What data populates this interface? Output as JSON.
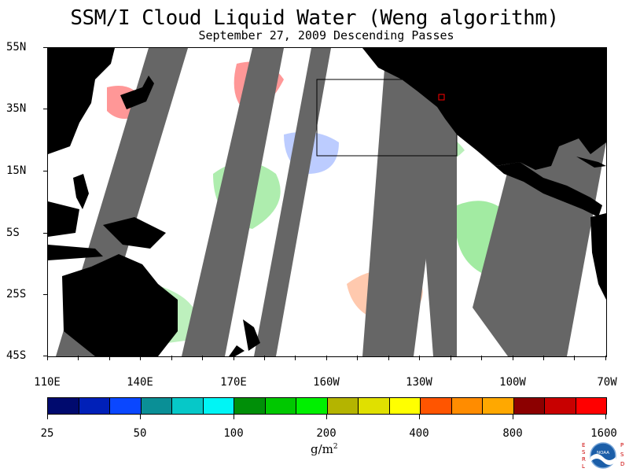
{
  "title": "SSM/I Cloud Liquid Water (Weng algorithm)",
  "subtitle": "September 27, 2009  Descending Passes",
  "map": {
    "lat_labels": [
      "55N",
      "35N",
      "15N",
      "5S",
      "25S",
      "45S"
    ],
    "lon_labels": [
      "110E",
      "140E",
      "170E",
      "160W",
      "130W",
      "100W",
      "70W"
    ],
    "land_color": "#000000",
    "gap_color": "#666666",
    "ocean_clear_color": "#ffffff"
  },
  "colorbar": {
    "colors": [
      "#000a6e",
      "#0020b8",
      "#0a47ff",
      "#0a8f96",
      "#06c8c8",
      "#00f5f5",
      "#008f08",
      "#00c800",
      "#00f000",
      "#b4b400",
      "#e0e000",
      "#ffff00",
      "#ff5500",
      "#ff8c00",
      "#ffa800",
      "#8c0000",
      "#c80000",
      "#ff0000"
    ],
    "labels": [
      "25",
      "50",
      "100",
      "200",
      "400",
      "800",
      "1600"
    ],
    "units_base": "g/m",
    "units_exp": "2"
  },
  "logo": {
    "left_letters": "E S R L",
    "right_letters": "P S D",
    "center_text": "NOAA"
  }
}
